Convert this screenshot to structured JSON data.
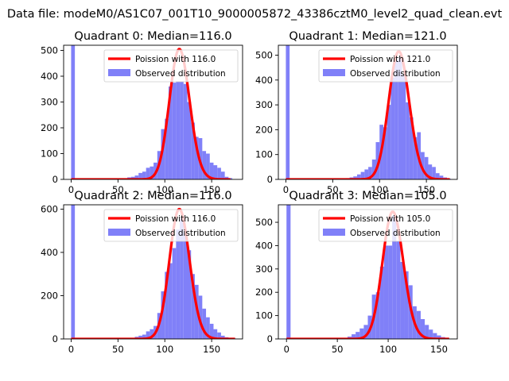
{
  "figure": {
    "title": "Data file: modeM0/AS1C07_001T10_9000005872_43386cztM0_level2_quad_clean.evt"
  },
  "colors": {
    "hist": "#8080f8",
    "poisson": "#ff0000"
  },
  "chart_data": [
    {
      "type": "bar",
      "title": "Quadrant 0: Median=116.0",
      "xlim": [
        -8,
        183
      ],
      "ylim": [
        0,
        520
      ],
      "xticks": [
        0,
        50,
        100,
        150
      ],
      "yticks": [
        0,
        100,
        200,
        300,
        400,
        500
      ],
      "legend": {
        "location": "top-right",
        "entries": [
          "Poission with 116.0",
          "Observed distribution"
        ]
      },
      "bin_width": 4,
      "histogram": {
        "name": "Observed distribution",
        "bin_starts": [
          0,
          60,
          64,
          68,
          72,
          76,
          80,
          84,
          88,
          92,
          96,
          100,
          104,
          108,
          112,
          116,
          120,
          124,
          128,
          132,
          136,
          140,
          144,
          148,
          152,
          156,
          160,
          164,
          168
        ],
        "counts": [
          520,
          8,
          10,
          15,
          25,
          30,
          45,
          50,
          65,
          110,
          195,
          235,
          360,
          375,
          380,
          380,
          370,
          300,
          220,
          165,
          160,
          110,
          100,
          65,
          55,
          45,
          30,
          10,
          5
        ]
      },
      "poisson": {
        "name": "Poission with 116.0",
        "mean": 116.0,
        "x_range": [
          0,
          170
        ],
        "peak": 505
      }
    },
    {
      "type": "bar",
      "title": "Quadrant 1: Median=121.0",
      "xlim": [
        -8,
        183
      ],
      "ylim": [
        0,
        540
      ],
      "xticks": [
        0,
        50,
        100,
        150
      ],
      "yticks": [
        0,
        100,
        200,
        300,
        400,
        500
      ],
      "legend": {
        "location": "top-right",
        "entries": [
          "Poission with 121.0",
          "Observed distribution"
        ]
      },
      "bin_width": 4,
      "histogram": {
        "name": "Observed distribution",
        "bin_starts": [
          0,
          64,
          68,
          72,
          76,
          80,
          84,
          88,
          92,
          96,
          100,
          104,
          108,
          112,
          116,
          120,
          124,
          128,
          132,
          136,
          140,
          144,
          148,
          152,
          156,
          160,
          164,
          168,
          172
        ],
        "counts": [
          540,
          5,
          8,
          12,
          20,
          30,
          40,
          50,
          80,
          150,
          220,
          210,
          300,
          410,
          480,
          490,
          420,
          310,
          250,
          170,
          190,
          110,
          90,
          60,
          50,
          25,
          15,
          8,
          3
        ]
      },
      "poisson": {
        "name": "Poission with 121.0",
        "mean": 121.0,
        "x_range": [
          0,
          175
        ],
        "peak": 515
      }
    },
    {
      "type": "bar",
      "title": "Quadrant 2: Median=116.0",
      "xlim": [
        -8,
        183
      ],
      "ylim": [
        0,
        620
      ],
      "xticks": [
        0,
        50,
        100,
        150
      ],
      "yticks": [
        0,
        200,
        400,
        600
      ],
      "legend": {
        "location": "top-right",
        "entries": [
          "Poission with 116.0",
          "Observed distribution"
        ]
      },
      "bin_width": 4,
      "histogram": {
        "name": "Observed distribution",
        "bin_starts": [
          0,
          64,
          68,
          72,
          76,
          80,
          84,
          88,
          92,
          96,
          100,
          104,
          108,
          112,
          116,
          120,
          124,
          128,
          132,
          136,
          140,
          144,
          148,
          152,
          156,
          160,
          164,
          168,
          172
        ],
        "counts": [
          620,
          5,
          10,
          15,
          20,
          35,
          45,
          60,
          120,
          220,
          310,
          350,
          420,
          505,
          560,
          490,
          410,
          300,
          250,
          200,
          140,
          100,
          70,
          45,
          30,
          15,
          8,
          5,
          2
        ]
      },
      "poisson": {
        "name": "Poission with 116.0",
        "mean": 116.0,
        "x_range": [
          0,
          175
        ],
        "peak": 600
      }
    },
    {
      "type": "bar",
      "title": "Quadrant 3: Median=105.0",
      "xlim": [
        -8,
        168
      ],
      "ylim": [
        0,
        575
      ],
      "xticks": [
        0,
        50,
        100,
        150
      ],
      "yticks": [
        0,
        100,
        200,
        300,
        400,
        500
      ],
      "legend": {
        "location": "top-right",
        "entries": [
          "Poission with 105.0",
          "Observed distribution"
        ]
      },
      "bin_width": 4,
      "histogram": {
        "name": "Observed distribution",
        "bin_starts": [
          0,
          56,
          60,
          64,
          68,
          72,
          76,
          80,
          84,
          88,
          92,
          96,
          100,
          104,
          108,
          112,
          116,
          120,
          124,
          128,
          132,
          136,
          140,
          144,
          148,
          152,
          156
        ],
        "counts": [
          575,
          5,
          10,
          20,
          30,
          45,
          60,
          100,
          190,
          200,
          310,
          400,
          400,
          530,
          420,
          330,
          290,
          230,
          140,
          120,
          85,
          60,
          40,
          25,
          15,
          8,
          3
        ]
      },
      "poisson": {
        "name": "Poission with 105.0",
        "mean": 105.0,
        "x_range": [
          0,
          160
        ],
        "peak": 545
      }
    }
  ]
}
